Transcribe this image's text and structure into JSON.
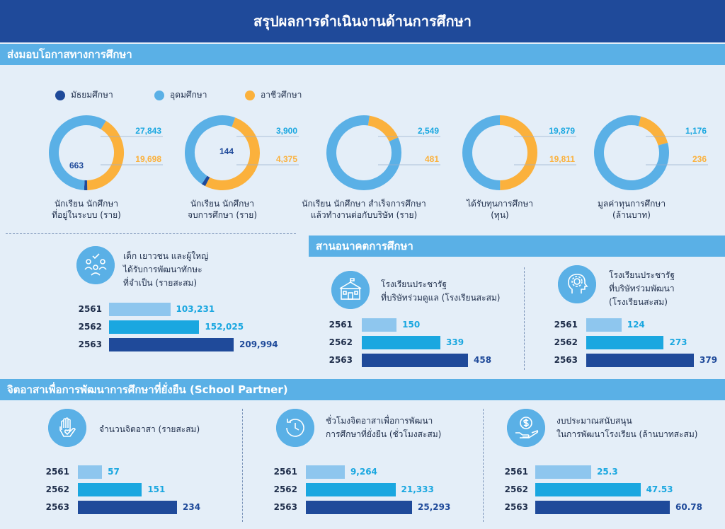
{
  "header": {
    "title": "สรุปผลการดำเนินงานด้านการศึกษา"
  },
  "sections": {
    "opportunity": "ส่งมอบโอกาสทางการศึกษา",
    "future": "สานอนาคตการศึกษา",
    "volunteer": "จิตอาสาเพื่อการพัฒนาการศึกษาที่ยั่งยืน (School Partner)"
  },
  "colors": {
    "secondary": "#1f4a9a",
    "higher": "#5ab0e6",
    "vocational": "#fbb13c",
    "bar2561": "#8ec6ee",
    "bar2562": "#1aa7e0",
    "bar2563": "#1f4a9a",
    "light_text": "#1aa7e0"
  },
  "chart_data": [
    {
      "type": "pie",
      "legend": [
        "มัธยมศึกษา",
        "อุดมศึกษา",
        "อาชีวศึกษา"
      ],
      "donuts": [
        {
          "label_lines": [
            "นักเรียน นักศึกษา",
            "ที่อยู่ในระบบ (ราย)"
          ],
          "values": [
            663,
            27843,
            19698
          ],
          "labels": [
            "663",
            "27,843",
            "19,698"
          ]
        },
        {
          "label_lines": [
            "นักเรียน นักศึกษา",
            "จบการศึกษา (ราย)"
          ],
          "values": [
            144,
            3900,
            4375
          ],
          "labels": [
            "144",
            "3,900",
            "4,375"
          ]
        },
        {
          "label_lines": [
            "นักเรียน นักศึกษา สำเร็จการศึกษา",
            "แล้วทำงานต่อกับบริษัท (ราย)"
          ],
          "values": [
            0,
            2549,
            481
          ],
          "labels": [
            "",
            "2,549",
            "481"
          ]
        },
        {
          "label_lines": [
            "ได้รับทุนการศึกษา",
            "(ทุน)"
          ],
          "values": [
            0,
            19879,
            19811
          ],
          "labels": [
            "",
            "19,879",
            "19,811"
          ]
        },
        {
          "label_lines": [
            "มูลค่าทุนการศึกษา",
            "(ล้านบาท)"
          ],
          "values": [
            0,
            1176,
            236
          ],
          "labels": [
            "",
            "1,176",
            "236"
          ]
        }
      ]
    },
    {
      "type": "bar",
      "caption_lines": [
        "เด็ก เยาวชน และผู้ใหญ่",
        "ได้รับการพัฒนาทักษะ",
        "ที่จำเป็น (รายสะสม)"
      ],
      "categories": [
        "2561",
        "2562",
        "2563"
      ],
      "values": [
        103231,
        152025,
        209994
      ],
      "labels": [
        "103,231",
        "152,025",
        "209,994"
      ]
    },
    {
      "type": "bar",
      "caption_lines": [
        "โรงเรียนประชารัฐ",
        "ที่บริษัทร่วมดูแล (โรงเรียนสะสม)"
      ],
      "categories": [
        "2561",
        "2562",
        "2563"
      ],
      "values": [
        150,
        339,
        458
      ],
      "labels": [
        "150",
        "339",
        "458"
      ]
    },
    {
      "type": "bar",
      "caption_lines": [
        "โรงเรียนประชารัฐ",
        "ที่บริษัทร่วมพัฒนา",
        "(โรงเรียนสะสม)"
      ],
      "categories": [
        "2561",
        "2562",
        "2563"
      ],
      "values": [
        124,
        273,
        379
      ],
      "labels": [
        "124",
        "273",
        "379"
      ]
    },
    {
      "type": "bar",
      "caption_lines": [
        "จำนวนจิตอาสา (รายสะสม)"
      ],
      "categories": [
        "2561",
        "2562",
        "2563"
      ],
      "values": [
        57,
        151,
        234
      ],
      "labels": [
        "57",
        "151",
        "234"
      ]
    },
    {
      "type": "bar",
      "caption_lines": [
        "ชั่วโมงจิตอาสาเพื่อการพัฒนา",
        "การศึกษาที่ยั่งยืน (ชั่วโมงสะสม)"
      ],
      "categories": [
        "2561",
        "2562",
        "2563"
      ],
      "values": [
        9264,
        21333,
        25293
      ],
      "labels": [
        "9,264",
        "21,333",
        "25,293"
      ]
    },
    {
      "type": "bar",
      "caption_lines": [
        "งบประมาณสนับสนุน",
        "ในการพัฒนาโรงเรียน (ล้านบาทสะสม)"
      ],
      "categories": [
        "2561",
        "2562",
        "2563"
      ],
      "values": [
        25.3,
        47.53,
        60.78
      ],
      "labels": [
        "25.3",
        "47.53",
        "60.78"
      ]
    }
  ],
  "icons": [
    "people-check-icon",
    "school-icon",
    "head-gear-icon",
    "hand-heart-icon",
    "clock-icon",
    "money-hand-icon"
  ]
}
